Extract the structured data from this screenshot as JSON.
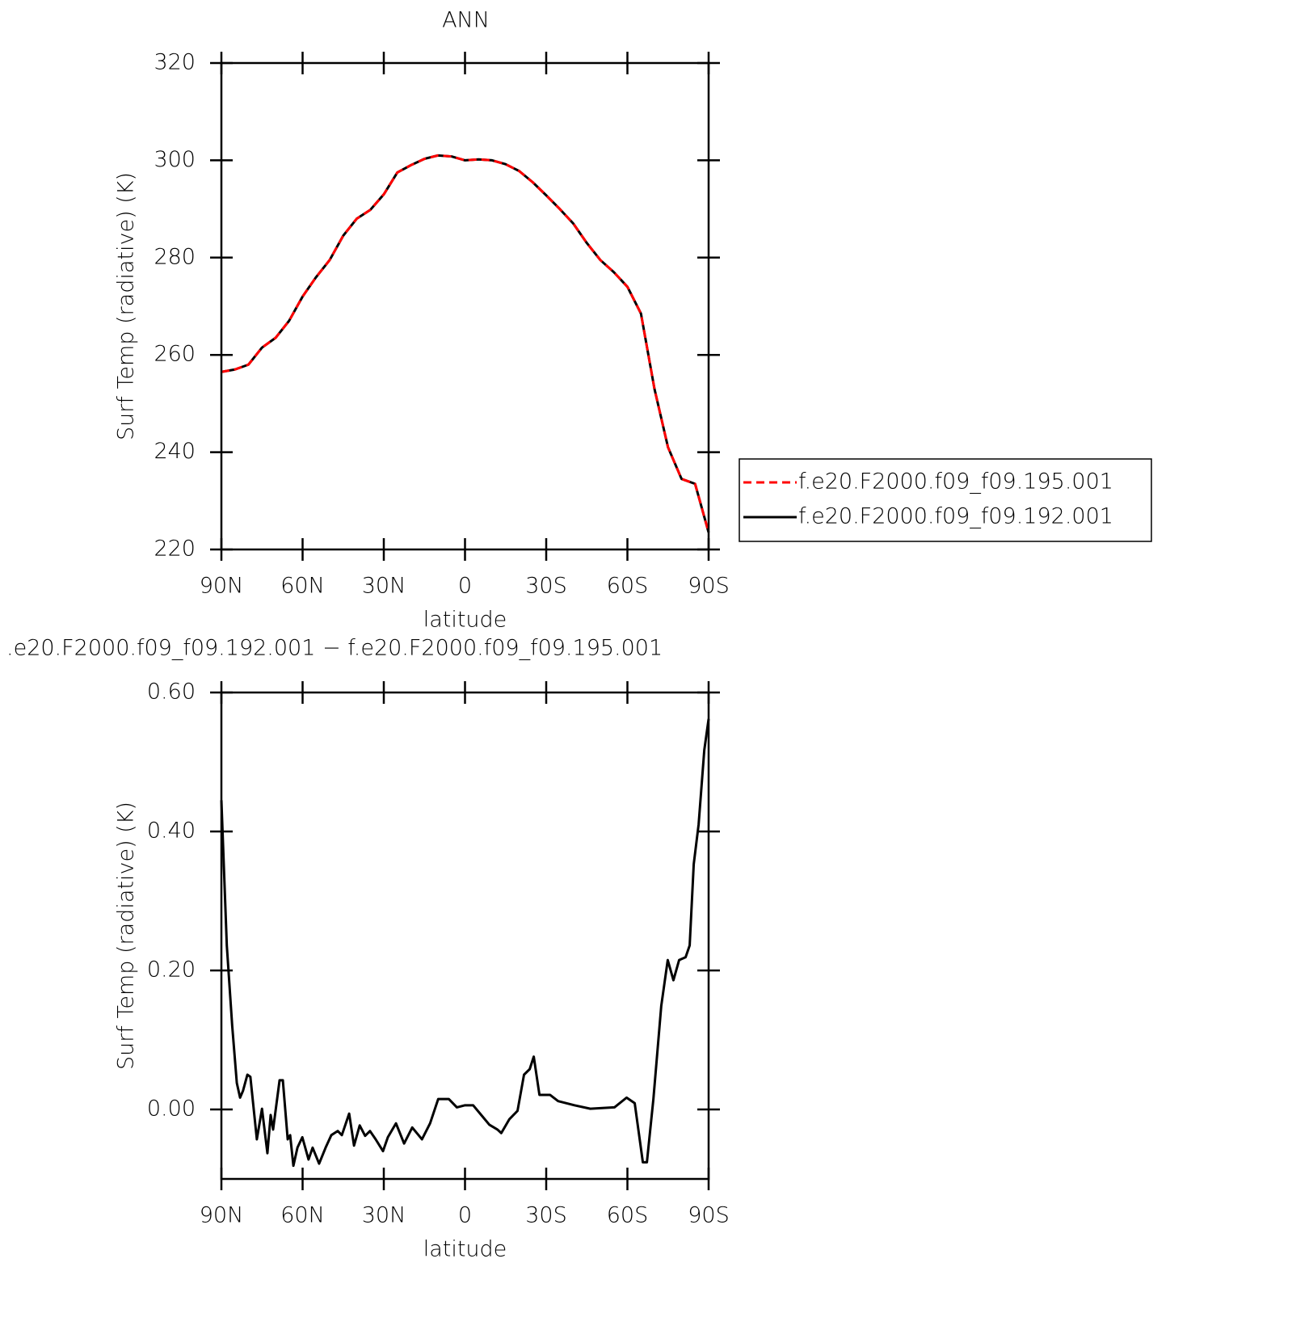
{
  "chart_data": [
    {
      "type": "line",
      "title": "ANN",
      "xlabel": "latitude",
      "ylabel": "Surf Temp (radiative) (K)",
      "x": [
        90,
        85,
        80,
        75,
        70,
        65,
        60,
        55,
        50,
        45,
        40,
        35,
        30,
        25,
        20,
        15,
        10,
        5,
        0,
        -5,
        -10,
        -15,
        -20,
        -25,
        -30,
        -35,
        -40,
        -45,
        -50,
        -55,
        -60,
        -65,
        -70,
        -75,
        -80,
        -85,
        -90
      ],
      "series": [
        {
          "name": "f.e20.F2000.f09_f09.195.001",
          "color": "#ff0000",
          "dash": true,
          "values": [
            256.5,
            257,
            258,
            261.5,
            263.5,
            267,
            272,
            276,
            279.5,
            284.5,
            288,
            289.8,
            293,
            297.5,
            299,
            300.3,
            301,
            300.8,
            300,
            300.2,
            300,
            299.2,
            297.8,
            295.5,
            292.8,
            290,
            287,
            283,
            279.5,
            277,
            274,
            268.5,
            253,
            241,
            234.5,
            233.5,
            223.5
          ]
        },
        {
          "name": "f.e20.F2000.f09_f09.192.001",
          "color": "#000000",
          "dash": false,
          "values": [
            256.5,
            257,
            258,
            261.5,
            263.5,
            267,
            272,
            276,
            279.5,
            284.5,
            288,
            289.8,
            293,
            297.5,
            299,
            300.3,
            301,
            300.8,
            300,
            300.2,
            300,
            299.2,
            297.8,
            295.5,
            292.8,
            290,
            287,
            283,
            279.5,
            277,
            274,
            268.5,
            253,
            241,
            234.5,
            233.5,
            223.5
          ]
        }
      ],
      "xlim": [
        90,
        -90
      ],
      "ylim": [
        220,
        320
      ],
      "xticks": [
        {
          "value": 90,
          "label": "90N"
        },
        {
          "value": 60,
          "label": "60N"
        },
        {
          "value": 30,
          "label": "30N"
        },
        0,
        {
          "value": -30,
          "label": "30S"
        },
        {
          "value": -60,
          "label": "60S"
        },
        {
          "value": -90,
          "label": "90S"
        }
      ],
      "yticks": [
        220,
        240,
        260,
        280,
        300,
        320
      ],
      "legend": "right"
    },
    {
      "type": "line",
      "title": ".e20.F2000.f09_f09.192.001 − f.e20.F2000.f09_f09.195.001",
      "xlabel": "latitude",
      "ylabel": "Surf Temp (radiative) (K)",
      "x": [
        90,
        88,
        86,
        84.3,
        83.1,
        82,
        80.4,
        79.3,
        76.9,
        75,
        73,
        71.8,
        70.9,
        68.5,
        67.3,
        65.5,
        64.6,
        63.4,
        61.9,
        60.1,
        57.8,
        56.3,
        53.9,
        51.5,
        49.4,
        47,
        45.5,
        42.8,
        41,
        38.9,
        36.9,
        35.1,
        33,
        30.3,
        28.5,
        25.5,
        22.5,
        19.5,
        15.9,
        12.9,
        9.9,
        6,
        3,
        0,
        -3,
        -6,
        -9,
        -12,
        -13.4,
        -16.4,
        -19.4,
        -21.8,
        -23.9,
        -25.4,
        -27.5,
        -31.4,
        -34.4,
        -40.4,
        -46.3,
        -55.2,
        -59.7,
        -62.7,
        -65.7,
        -67.2,
        -69.6,
        -72.5,
        -74.9,
        -77,
        -79.1,
        -81.5,
        -83,
        -84.5,
        -86.3,
        -88.4,
        -90
      ],
      "series": [
        {
          "color": "#000000",
          "dash": false,
          "values": [
            0.445,
            0.236,
            0.12,
            0.038,
            0.017,
            0.027,
            0.05,
            0.047,
            -0.043,
            0.001,
            -0.063,
            -0.008,
            -0.029,
            0.042,
            0.042,
            -0.043,
            -0.037,
            -0.081,
            -0.055,
            -0.04,
            -0.072,
            -0.055,
            -0.078,
            -0.055,
            -0.037,
            -0.031,
            -0.037,
            -0.006,
            -0.052,
            -0.023,
            -0.038,
            -0.031,
            -0.043,
            -0.06,
            -0.04,
            -0.02,
            -0.049,
            -0.026,
            -0.043,
            -0.02,
            0.015,
            0.015,
            0.003,
            0.006,
            0.006,
            -0.008,
            -0.022,
            -0.029,
            -0.034,
            -0.014,
            -0.002,
            0.05,
            0.058,
            0.076,
            0.021,
            0.021,
            0.012,
            0.006,
            0.001,
            0.003,
            0.017,
            0.009,
            -0.076,
            -0.076,
            0.015,
            0.149,
            0.215,
            0.186,
            0.215,
            0.219,
            0.236,
            0.353,
            0.41,
            0.517,
            0.562
          ]
        }
      ],
      "xlim": [
        90,
        -90
      ],
      "ylim": [
        -0.1,
        0.6
      ],
      "xticks": [
        {
          "value": 90,
          "label": "90N"
        },
        {
          "value": 60,
          "label": "60N"
        },
        {
          "value": 30,
          "label": "30N"
        },
        0,
        {
          "value": -30,
          "label": "30S"
        },
        {
          "value": -60,
          "label": "60S"
        },
        {
          "value": -90,
          "label": "90S"
        }
      ],
      "yticks": [
        {
          "value": 0,
          "label": "0.00"
        },
        {
          "value": 0.2,
          "label": "0.20"
        },
        {
          "value": 0.4,
          "label": "0.40"
        },
        {
          "value": 0.6,
          "label": "0.60"
        }
      ]
    }
  ]
}
